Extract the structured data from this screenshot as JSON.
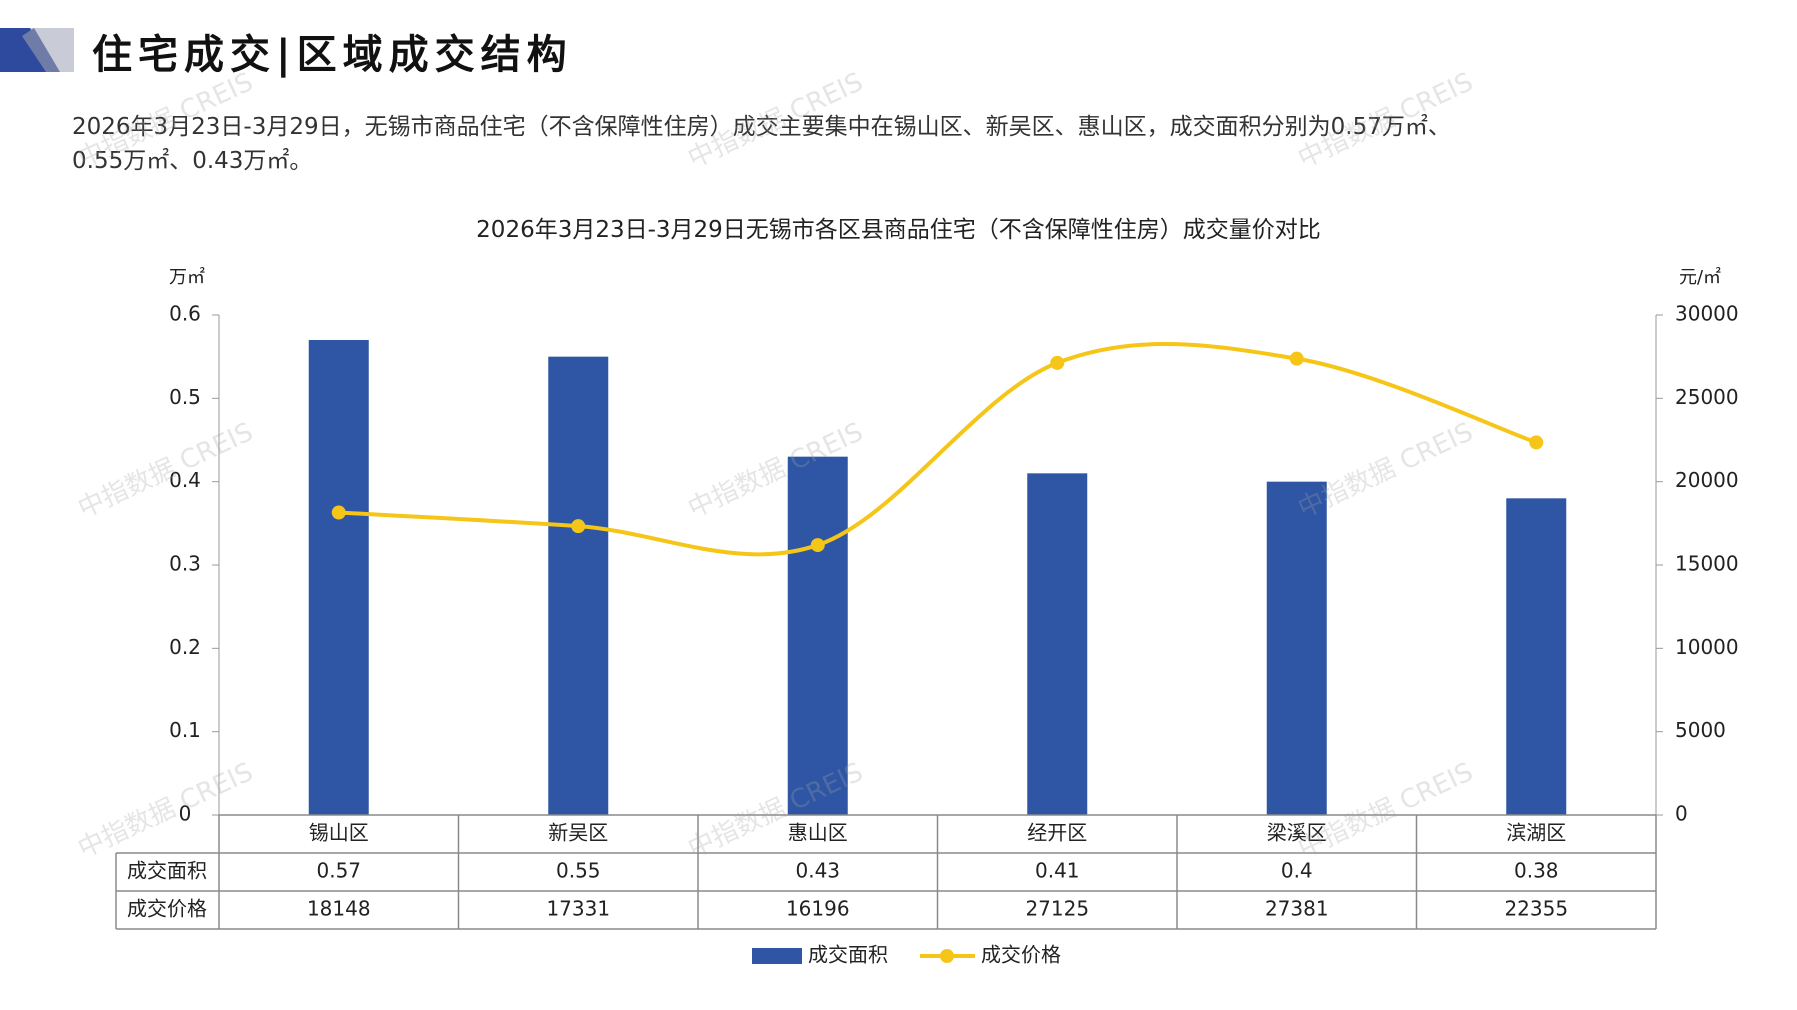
{
  "header": {
    "title": "住宅成交|区域成交结构"
  },
  "summary": {
    "line1": "2026年3月23日-3月29日，无锡市商品住宅（不含保障性住房）成交主要集中在锡山区、新吴区、惠山区，成交面积分别为0.57万㎡、",
    "line2": "0.55万㎡、0.43万㎡。"
  },
  "watermark": "中指数据 CREIS",
  "colors": {
    "bar": "#2E56A4",
    "line": "#F5C518",
    "deco_dark": "#2E4A9E",
    "deco_light": "#C9CCD6"
  },
  "chart_data": {
    "type": "bar",
    "title": "2026年3月23日-3月29日无锡市各区县商品住宅（不含保障性住房）成交量价对比",
    "categories": [
      "锡山区",
      "新吴区",
      "惠山区",
      "经开区",
      "梁溪区",
      "滨湖区"
    ],
    "series": [
      {
        "name": "成交面积",
        "type": "bar",
        "axis": "left",
        "values": [
          0.57,
          0.55,
          0.43,
          0.41,
          0.4,
          0.38
        ],
        "labels": [
          "0.57",
          "0.55",
          "0.43",
          "0.41",
          "0.4",
          "0.38"
        ]
      },
      {
        "name": "成交价格",
        "type": "line",
        "axis": "right",
        "values": [
          18148,
          17331,
          16196,
          27125,
          27381,
          22355
        ],
        "labels": [
          "18148",
          "17331",
          "16196",
          "27125",
          "27381",
          "22355"
        ]
      }
    ],
    "y_left": {
      "unit": "万㎡",
      "range": [
        0,
        0.6
      ],
      "ticks": [
        "0",
        "0.1",
        "0.2",
        "0.3",
        "0.4",
        "0.5",
        "0.6"
      ]
    },
    "y_right": {
      "unit": "元/㎡",
      "range": [
        0,
        30000
      ],
      "ticks": [
        "0",
        "5000",
        "10000",
        "15000",
        "20000",
        "25000",
        "30000"
      ]
    },
    "data_table": true,
    "legend_position": "bottom"
  }
}
